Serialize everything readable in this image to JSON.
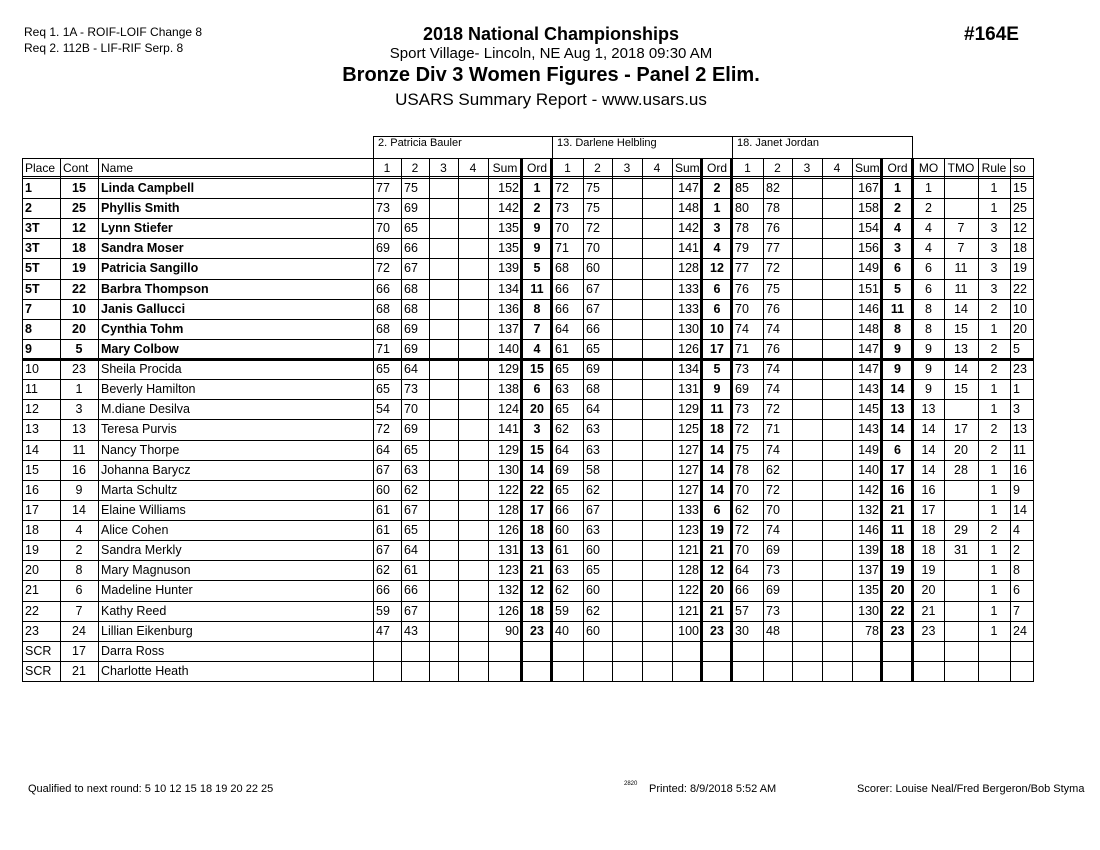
{
  "header": {
    "requirements": [
      "Req  1.  1A - ROIF-LOIF Change 8",
      "Req  2.  112B - LIF-RIF Serp. 8"
    ],
    "title": "2018 National Championships",
    "venue": "Sport Village- Lincoln, NE  Aug 1, 2018  09:30 AM",
    "event": "Bronze Div 3 Women Figures - Panel 2 Elim.",
    "subtitle": "USARS Summary Report - www.usars.us",
    "event_number": "#164E"
  },
  "table": {
    "judges": [
      "2.  Patricia Bauler",
      "13.  Darlene Helbling",
      "18.  Janet Jordan"
    ],
    "columns": {
      "place": "Place",
      "cont": "Cont",
      "name": "Name",
      "judge_cols": [
        "1",
        "2",
        "3",
        "4",
        "Sum",
        "Ord"
      ],
      "mo": "MO",
      "tmo": "TMO",
      "rule": "Rule",
      "so": "so"
    },
    "rows": [
      {
        "place": "1",
        "cont": "15",
        "name": "Linda Campbell",
        "qualified": true,
        "j": [
          [
            "77",
            "75",
            "152",
            "1"
          ],
          [
            "72",
            "75",
            "147",
            "2"
          ],
          [
            "85",
            "82",
            "167",
            "1"
          ]
        ],
        "mo": "1",
        "tmo": "",
        "rule": "1",
        "so": "15"
      },
      {
        "place": "2",
        "cont": "25",
        "name": "Phyllis Smith",
        "qualified": true,
        "j": [
          [
            "73",
            "69",
            "142",
            "2"
          ],
          [
            "73",
            "75",
            "148",
            "1"
          ],
          [
            "80",
            "78",
            "158",
            "2"
          ]
        ],
        "mo": "2",
        "tmo": "",
        "rule": "1",
        "so": "25"
      },
      {
        "place": "3T",
        "cont": "12",
        "name": "Lynn Stiefer",
        "qualified": true,
        "j": [
          [
            "70",
            "65",
            "135",
            "9"
          ],
          [
            "70",
            "72",
            "142",
            "3"
          ],
          [
            "78",
            "76",
            "154",
            "4"
          ]
        ],
        "mo": "4",
        "tmo": "7",
        "rule": "3",
        "so": "12"
      },
      {
        "place": "3T",
        "cont": "18",
        "name": "Sandra Moser",
        "qualified": true,
        "j": [
          [
            "69",
            "66",
            "135",
            "9"
          ],
          [
            "71",
            "70",
            "141",
            "4"
          ],
          [
            "79",
            "77",
            "156",
            "3"
          ]
        ],
        "mo": "4",
        "tmo": "7",
        "rule": "3",
        "so": "18"
      },
      {
        "place": "5T",
        "cont": "19",
        "name": "Patricia Sangillo",
        "qualified": true,
        "j": [
          [
            "72",
            "67",
            "139",
            "5"
          ],
          [
            "68",
            "60",
            "128",
            "12"
          ],
          [
            "77",
            "72",
            "149",
            "6"
          ]
        ],
        "mo": "6",
        "tmo": "11",
        "rule": "3",
        "so": "19"
      },
      {
        "place": "5T",
        "cont": "22",
        "name": "Barbra Thompson",
        "qualified": true,
        "j": [
          [
            "66",
            "68",
            "134",
            "11"
          ],
          [
            "66",
            "67",
            "133",
            "6"
          ],
          [
            "76",
            "75",
            "151",
            "5"
          ]
        ],
        "mo": "6",
        "tmo": "11",
        "rule": "3",
        "so": "22"
      },
      {
        "place": "7",
        "cont": "10",
        "name": "Janis Gallucci",
        "qualified": true,
        "j": [
          [
            "68",
            "68",
            "136",
            "8"
          ],
          [
            "66",
            "67",
            "133",
            "6"
          ],
          [
            "70",
            "76",
            "146",
            "11"
          ]
        ],
        "mo": "8",
        "tmo": "14",
        "rule": "2",
        "so": "10"
      },
      {
        "place": "8",
        "cont": "20",
        "name": "Cynthia Tohm",
        "qualified": true,
        "j": [
          [
            "68",
            "69",
            "137",
            "7"
          ],
          [
            "64",
            "66",
            "130",
            "10"
          ],
          [
            "74",
            "74",
            "148",
            "8"
          ]
        ],
        "mo": "8",
        "tmo": "15",
        "rule": "1",
        "so": "20"
      },
      {
        "place": "9",
        "cont": "5",
        "name": "Mary Colbow",
        "qualified": true,
        "j": [
          [
            "71",
            "69",
            "140",
            "4"
          ],
          [
            "61",
            "65",
            "126",
            "17"
          ],
          [
            "71",
            "76",
            "147",
            "9"
          ]
        ],
        "mo": "9",
        "tmo": "13",
        "rule": "2",
        "so": "5"
      },
      {
        "place": "10",
        "cont": "23",
        "name": "Sheila Procida",
        "qualified": false,
        "j": [
          [
            "65",
            "64",
            "129",
            "15"
          ],
          [
            "65",
            "69",
            "134",
            "5"
          ],
          [
            "73",
            "74",
            "147",
            "9"
          ]
        ],
        "mo": "9",
        "tmo": "14",
        "rule": "2",
        "so": "23"
      },
      {
        "place": "11",
        "cont": "1",
        "name": "Beverly Hamilton",
        "qualified": false,
        "j": [
          [
            "65",
            "73",
            "138",
            "6"
          ],
          [
            "63",
            "68",
            "131",
            "9"
          ],
          [
            "69",
            "74",
            "143",
            "14"
          ]
        ],
        "mo": "9",
        "tmo": "15",
        "rule": "1",
        "so": "1"
      },
      {
        "place": "12",
        "cont": "3",
        "name": "M.diane Desilva",
        "qualified": false,
        "j": [
          [
            "54",
            "70",
            "124",
            "20"
          ],
          [
            "65",
            "64",
            "129",
            "11"
          ],
          [
            "73",
            "72",
            "145",
            "13"
          ]
        ],
        "mo": "13",
        "tmo": "",
        "rule": "1",
        "so": "3"
      },
      {
        "place": "13",
        "cont": "13",
        "name": "Teresa Purvis",
        "qualified": false,
        "j": [
          [
            "72",
            "69",
            "141",
            "3"
          ],
          [
            "62",
            "63",
            "125",
            "18"
          ],
          [
            "72",
            "71",
            "143",
            "14"
          ]
        ],
        "mo": "14",
        "tmo": "17",
        "rule": "2",
        "so": "13"
      },
      {
        "place": "14",
        "cont": "11",
        "name": "Nancy Thorpe",
        "qualified": false,
        "j": [
          [
            "64",
            "65",
            "129",
            "15"
          ],
          [
            "64",
            "63",
            "127",
            "14"
          ],
          [
            "75",
            "74",
            "149",
            "6"
          ]
        ],
        "mo": "14",
        "tmo": "20",
        "rule": "2",
        "so": "11"
      },
      {
        "place": "15",
        "cont": "16",
        "name": "Johanna Barycz",
        "qualified": false,
        "j": [
          [
            "67",
            "63",
            "130",
            "14"
          ],
          [
            "69",
            "58",
            "127",
            "14"
          ],
          [
            "78",
            "62",
            "140",
            "17"
          ]
        ],
        "mo": "14",
        "tmo": "28",
        "rule": "1",
        "so": "16"
      },
      {
        "place": "16",
        "cont": "9",
        "name": "Marta Schultz",
        "qualified": false,
        "j": [
          [
            "60",
            "62",
            "122",
            "22"
          ],
          [
            "65",
            "62",
            "127",
            "14"
          ],
          [
            "70",
            "72",
            "142",
            "16"
          ]
        ],
        "mo": "16",
        "tmo": "",
        "rule": "1",
        "so": "9"
      },
      {
        "place": "17",
        "cont": "14",
        "name": "Elaine Williams",
        "qualified": false,
        "j": [
          [
            "61",
            "67",
            "128",
            "17"
          ],
          [
            "66",
            "67",
            "133",
            "6"
          ],
          [
            "62",
            "70",
            "132",
            "21"
          ]
        ],
        "mo": "17",
        "tmo": "",
        "rule": "1",
        "so": "14"
      },
      {
        "place": "18",
        "cont": "4",
        "name": "Alice Cohen",
        "qualified": false,
        "j": [
          [
            "61",
            "65",
            "126",
            "18"
          ],
          [
            "60",
            "63",
            "123",
            "19"
          ],
          [
            "72",
            "74",
            "146",
            "11"
          ]
        ],
        "mo": "18",
        "tmo": "29",
        "rule": "2",
        "so": "4"
      },
      {
        "place": "19",
        "cont": "2",
        "name": "Sandra Merkly",
        "qualified": false,
        "j": [
          [
            "67",
            "64",
            "131",
            "13"
          ],
          [
            "61",
            "60",
            "121",
            "21"
          ],
          [
            "70",
            "69",
            "139",
            "18"
          ]
        ],
        "mo": "18",
        "tmo": "31",
        "rule": "1",
        "so": "2"
      },
      {
        "place": "20",
        "cont": "8",
        "name": "Mary Magnuson",
        "qualified": false,
        "j": [
          [
            "62",
            "61",
            "123",
            "21"
          ],
          [
            "63",
            "65",
            "128",
            "12"
          ],
          [
            "64",
            "73",
            "137",
            "19"
          ]
        ],
        "mo": "19",
        "tmo": "",
        "rule": "1",
        "so": "8"
      },
      {
        "place": "21",
        "cont": "6",
        "name": "Madeline Hunter",
        "qualified": false,
        "j": [
          [
            "66",
            "66",
            "132",
            "12"
          ],
          [
            "62",
            "60",
            "122",
            "20"
          ],
          [
            "66",
            "69",
            "135",
            "20"
          ]
        ],
        "mo": "20",
        "tmo": "",
        "rule": "1",
        "so": "6"
      },
      {
        "place": "22",
        "cont": "7",
        "name": "Kathy Reed",
        "qualified": false,
        "j": [
          [
            "59",
            "67",
            "126",
            "18"
          ],
          [
            "59",
            "62",
            "121",
            "21"
          ],
          [
            "57",
            "73",
            "130",
            "22"
          ]
        ],
        "mo": "21",
        "tmo": "",
        "rule": "1",
        "so": "7"
      },
      {
        "place": "23",
        "cont": "24",
        "name": "Lillian Eikenburg",
        "qualified": false,
        "j": [
          [
            "47",
            "43",
            "90",
            "23"
          ],
          [
            "40",
            "60",
            "100",
            "23"
          ],
          [
            "30",
            "48",
            "78",
            "23"
          ]
        ],
        "mo": "23",
        "tmo": "",
        "rule": "1",
        "so": "24"
      },
      {
        "place": "SCR",
        "cont": "17",
        "name": "Darra Ross",
        "qualified": false,
        "j": [
          [
            "",
            "",
            "",
            ""
          ],
          [
            "",
            "",
            "",
            ""
          ],
          [
            "",
            "",
            "",
            ""
          ]
        ],
        "mo": "",
        "tmo": "",
        "rule": "",
        "so": ""
      },
      {
        "place": "SCR",
        "cont": "21",
        "name": "Charlotte Heath",
        "qualified": false,
        "j": [
          [
            "",
            "",
            "",
            ""
          ],
          [
            "",
            "",
            "",
            ""
          ],
          [
            "",
            "",
            "",
            ""
          ]
        ],
        "mo": "",
        "tmo": "",
        "rule": "",
        "so": ""
      }
    ]
  },
  "footer": {
    "qualified": "Qualified to next round:   5 10 12 15 18 19 20 22 25",
    "code": "2820",
    "printed": "Printed:  8/9/2018  5:52 AM",
    "scorer": "Scorer:   Louise Neal/Fred Bergeron/Bob Styma"
  }
}
